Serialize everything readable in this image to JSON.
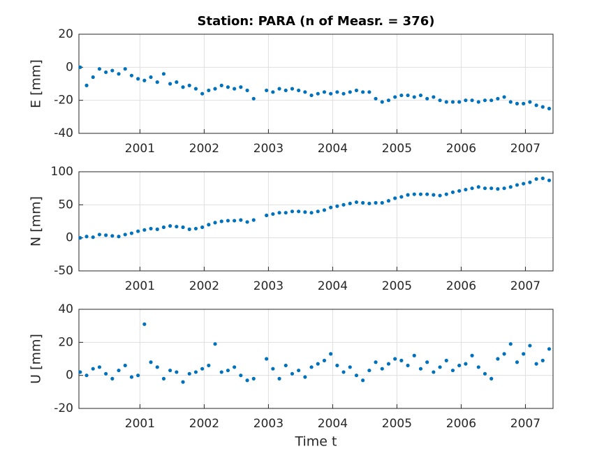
{
  "chart_data": [
    {
      "type": "scatter",
      "title": "Station: PARA (n of Measr. = 376)",
      "ylabel": "E [mm]",
      "color": "#0072bd",
      "grid": true,
      "xlim": [
        2000.05,
        2007.43
      ],
      "xticks": [
        2001,
        2002,
        2003,
        2004,
        2005,
        2006,
        2007
      ],
      "ylim": [
        -40,
        20
      ],
      "yticks": [
        -40,
        -20,
        0,
        20
      ],
      "x": [
        2000.07,
        2000.17,
        2000.27,
        2000.37,
        2000.47,
        2000.57,
        2000.67,
        2000.77,
        2000.87,
        2000.97,
        2001.07,
        2001.17,
        2001.27,
        2001.37,
        2001.47,
        2001.57,
        2001.67,
        2001.77,
        2001.87,
        2001.97,
        2002.07,
        2002.17,
        2002.27,
        2002.37,
        2002.47,
        2002.57,
        2002.67,
        2002.77,
        2002.97,
        2003.07,
        2003.17,
        2003.27,
        2003.37,
        2003.47,
        2003.57,
        2003.67,
        2003.77,
        2003.87,
        2003.97,
        2004.07,
        2004.17,
        2004.27,
        2004.37,
        2004.47,
        2004.57,
        2004.67,
        2004.77,
        2004.87,
        2004.97,
        2005.07,
        2005.17,
        2005.27,
        2005.37,
        2005.47,
        2005.57,
        2005.67,
        2005.77,
        2005.87,
        2005.97,
        2006.07,
        2006.17,
        2006.27,
        2006.37,
        2006.47,
        2006.57,
        2006.67,
        2006.77,
        2006.87,
        2006.97,
        2007.07,
        2007.17,
        2007.27,
        2007.37
      ],
      "values": [
        0,
        -11,
        -6,
        -1,
        -3,
        -2,
        -4,
        -1,
        -5,
        -7,
        -8,
        -6,
        -9,
        -4,
        -10,
        -9,
        -12,
        -11,
        -13,
        -16,
        -14,
        -13,
        -11,
        -12,
        -13,
        -12,
        -14,
        -19,
        -14,
        -15,
        -13,
        -14,
        -13,
        -14,
        -15,
        -17,
        -16,
        -15,
        -16,
        -15,
        -16,
        -15,
        -14,
        -15,
        -15,
        -19,
        -21,
        -20,
        -18,
        -17,
        -17,
        -18,
        -17,
        -19,
        -18,
        -20,
        -21,
        -21,
        -21,
        -20,
        -20,
        -21,
        -20,
        -20,
        -19,
        -18,
        -21,
        -22,
        -22,
        -21,
        -23,
        -24,
        -25
      ]
    },
    {
      "type": "scatter",
      "ylabel": "N [mm]",
      "color": "#0072bd",
      "grid": true,
      "xlim": [
        2000.05,
        2007.43
      ],
      "xticks": [
        2001,
        2002,
        2003,
        2004,
        2005,
        2006,
        2007
      ],
      "ylim": [
        -50,
        100
      ],
      "yticks": [
        -50,
        0,
        50,
        100
      ],
      "x": [
        2000.07,
        2000.17,
        2000.27,
        2000.37,
        2000.47,
        2000.57,
        2000.67,
        2000.77,
        2000.87,
        2000.97,
        2001.07,
        2001.17,
        2001.27,
        2001.37,
        2001.47,
        2001.57,
        2001.67,
        2001.77,
        2001.87,
        2001.97,
        2002.07,
        2002.17,
        2002.27,
        2002.37,
        2002.47,
        2002.57,
        2002.67,
        2002.77,
        2002.97,
        2003.07,
        2003.17,
        2003.27,
        2003.37,
        2003.47,
        2003.57,
        2003.67,
        2003.77,
        2003.87,
        2003.97,
        2004.07,
        2004.17,
        2004.27,
        2004.37,
        2004.47,
        2004.57,
        2004.67,
        2004.77,
        2004.87,
        2004.97,
        2005.07,
        2005.17,
        2005.27,
        2005.37,
        2005.47,
        2005.57,
        2005.67,
        2005.77,
        2005.87,
        2005.97,
        2006.07,
        2006.17,
        2006.27,
        2006.37,
        2006.47,
        2006.57,
        2006.67,
        2006.77,
        2006.87,
        2006.97,
        2007.07,
        2007.17,
        2007.27,
        2007.37
      ],
      "values": [
        0,
        2,
        1,
        5,
        4,
        3,
        2,
        5,
        7,
        10,
        12,
        14,
        13,
        16,
        18,
        17,
        16,
        13,
        14,
        16,
        20,
        23,
        25,
        26,
        26,
        27,
        24,
        27,
        34,
        36,
        38,
        38,
        40,
        40,
        39,
        38,
        40,
        42,
        46,
        48,
        50,
        52,
        54,
        53,
        52,
        53,
        53,
        56,
        60,
        62,
        65,
        66,
        66,
        66,
        65,
        64,
        66,
        69,
        71,
        73,
        75,
        77,
        75,
        75,
        74,
        75,
        77,
        80,
        82,
        84,
        89,
        90,
        87
      ]
    },
    {
      "type": "scatter",
      "ylabel": "U [mm]",
      "xlabel": "Time t",
      "color": "#0072bd",
      "grid": true,
      "xlim": [
        2000.05,
        2007.43
      ],
      "xticks": [
        2001,
        2002,
        2003,
        2004,
        2005,
        2006,
        2007
      ],
      "ylim": [
        -20,
        40
      ],
      "yticks": [
        -20,
        0,
        20,
        40
      ],
      "x": [
        2000.07,
        2000.17,
        2000.27,
        2000.37,
        2000.47,
        2000.57,
        2000.67,
        2000.77,
        2000.87,
        2000.97,
        2001.07,
        2001.17,
        2001.27,
        2001.37,
        2001.47,
        2001.57,
        2001.67,
        2001.77,
        2001.87,
        2001.97,
        2002.07,
        2002.17,
        2002.27,
        2002.37,
        2002.47,
        2002.57,
        2002.67,
        2002.77,
        2002.97,
        2003.07,
        2003.17,
        2003.27,
        2003.37,
        2003.47,
        2003.57,
        2003.67,
        2003.77,
        2003.87,
        2003.97,
        2004.07,
        2004.17,
        2004.27,
        2004.37,
        2004.47,
        2004.57,
        2004.67,
        2004.77,
        2004.87,
        2004.97,
        2005.07,
        2005.17,
        2005.27,
        2005.37,
        2005.47,
        2005.57,
        2005.67,
        2005.77,
        2005.87,
        2005.97,
        2006.07,
        2006.17,
        2006.27,
        2006.37,
        2006.47,
        2006.57,
        2006.67,
        2006.77,
        2006.87,
        2006.97,
        2007.07,
        2007.17,
        2007.27,
        2007.37
      ],
      "values": [
        2,
        0,
        4,
        5,
        1,
        -2,
        3,
        6,
        -1,
        0,
        31,
        8,
        5,
        -2,
        3,
        2,
        -4,
        1,
        2,
        4,
        6,
        19,
        2,
        3,
        5,
        0,
        -3,
        -2,
        10,
        4,
        -2,
        6,
        1,
        3,
        -1,
        5,
        7,
        9,
        13,
        6,
        2,
        5,
        0,
        -3,
        3,
        8,
        4,
        7,
        10,
        9,
        6,
        12,
        4,
        8,
        2,
        5,
        9,
        3,
        6,
        7,
        12,
        5,
        1,
        -2,
        10,
        13,
        19,
        8,
        13,
        18,
        7,
        9,
        16
      ]
    }
  ]
}
